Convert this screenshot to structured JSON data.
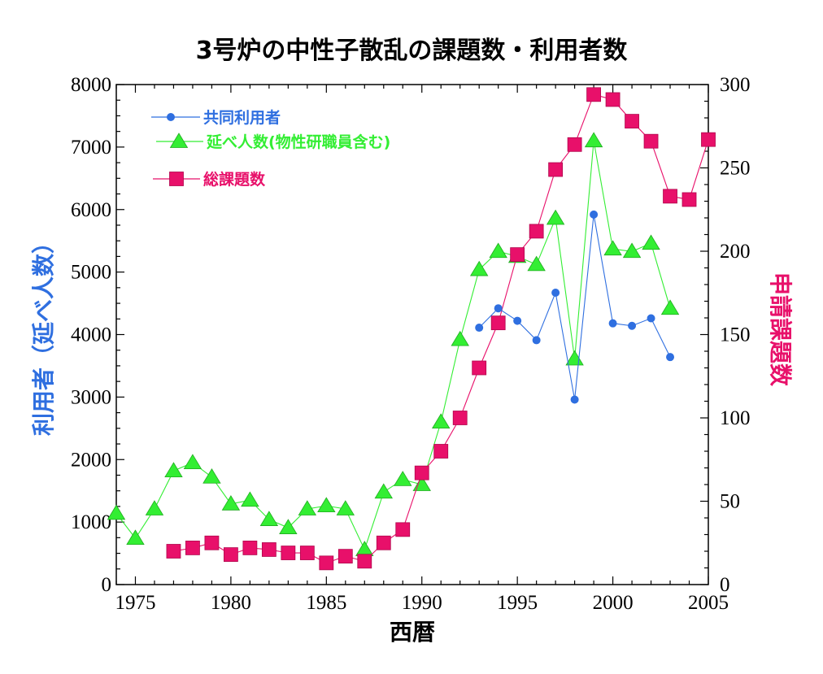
{
  "chart_data": {
    "type": "line",
    "title": "3号炉の中性子散乱の課題数・利用者数",
    "xlabel": "西暦",
    "ylabel_left": "利用者（延べ人数）",
    "ylabel_right": "申請課題数",
    "xlim": [
      1974,
      2005
    ],
    "ylim_left": [
      0,
      8000
    ],
    "ylim_right": [
      0,
      300
    ],
    "x_ticks": [
      1975,
      1980,
      1985,
      1990,
      1995,
      2000,
      2005
    ],
    "y_ticks_left": [
      0,
      1000,
      2000,
      3000,
      4000,
      5000,
      6000,
      7000,
      8000
    ],
    "y_ticks_right": [
      0,
      50,
      100,
      150,
      200,
      250,
      300
    ],
    "legend_position": "top-left",
    "series": [
      {
        "name": "共同利用者",
        "axis": "left",
        "color": "#2f6fe0",
        "marker": "circle",
        "points": [
          [
            1993,
            4110
          ],
          [
            1994,
            4420
          ],
          [
            1995,
            4220
          ],
          [
            1996,
            3910
          ],
          [
            1997,
            4670
          ],
          [
            1998,
            2960
          ],
          [
            1999,
            5920
          ],
          [
            2000,
            4180
          ],
          [
            2001,
            4140
          ],
          [
            2002,
            4260
          ],
          [
            2003,
            3640
          ]
        ]
      },
      {
        "name": "延べ人数(物性研職員含む)",
        "axis": "left",
        "color": "#33ee33",
        "marker": "triangle",
        "points": [
          [
            1974,
            1140
          ],
          [
            1975,
            740
          ],
          [
            1976,
            1210
          ],
          [
            1977,
            1820
          ],
          [
            1978,
            1950
          ],
          [
            1979,
            1720
          ],
          [
            1980,
            1290
          ],
          [
            1981,
            1350
          ],
          [
            1982,
            1040
          ],
          [
            1983,
            910
          ],
          [
            1984,
            1210
          ],
          [
            1985,
            1260
          ],
          [
            1986,
            1210
          ],
          [
            1987,
            560
          ],
          [
            1988,
            1480
          ],
          [
            1989,
            1680
          ],
          [
            1990,
            1600
          ],
          [
            1991,
            2600
          ],
          [
            1992,
            3920
          ],
          [
            1993,
            5040
          ],
          [
            1994,
            5330
          ],
          [
            1995,
            5250
          ],
          [
            1996,
            5120
          ],
          [
            1997,
            5860
          ],
          [
            1998,
            3610
          ],
          [
            1999,
            7100
          ],
          [
            2000,
            5370
          ],
          [
            2001,
            5330
          ],
          [
            2002,
            5460
          ],
          [
            2003,
            4420
          ]
        ]
      },
      {
        "name": "総課題数",
        "axis": "right",
        "color": "#e8106a",
        "marker": "square",
        "points": [
          [
            1977,
            20
          ],
          [
            1978,
            22
          ],
          [
            1979,
            25
          ],
          [
            1980,
            18
          ],
          [
            1981,
            22
          ],
          [
            1982,
            21
          ],
          [
            1983,
            19
          ],
          [
            1984,
            19
          ],
          [
            1985,
            13
          ],
          [
            1986,
            17
          ],
          [
            1987,
            14
          ],
          [
            1988,
            25
          ],
          [
            1989,
            33
          ],
          [
            1990,
            67
          ],
          [
            1991,
            80
          ],
          [
            1992,
            100
          ],
          [
            1993,
            130
          ],
          [
            1994,
            157
          ],
          [
            1995,
            198
          ],
          [
            1996,
            212
          ],
          [
            1997,
            249
          ],
          [
            1998,
            264
          ],
          [
            1999,
            294
          ],
          [
            2000,
            291
          ],
          [
            2001,
            278
          ],
          [
            2002,
            266
          ],
          [
            2003,
            233
          ],
          [
            2004,
            231
          ],
          [
            2005,
            267
          ]
        ]
      }
    ]
  }
}
